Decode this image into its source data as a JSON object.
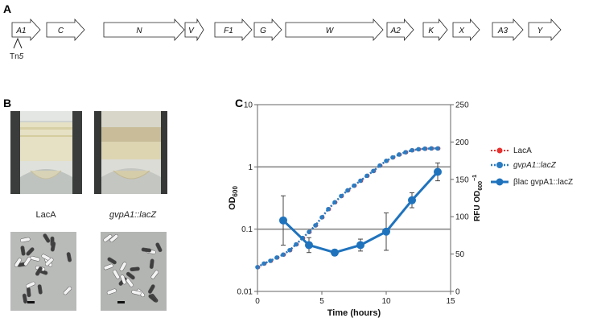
{
  "panels": {
    "A": "A",
    "B": "B",
    "C": "C"
  },
  "operon": {
    "genes": [
      "A1",
      "C",
      "N",
      "V",
      "F1",
      "G",
      "W",
      "A2",
      "K",
      "X",
      "A3",
      "Y"
    ],
    "insertion_label": "Tn5"
  },
  "photos": {
    "left_label": "LacA",
    "right_label": "gvpA1::lacZ"
  },
  "chart_data": {
    "type": "line",
    "xlabel": "Time (hours)",
    "ylabel": "OD600",
    "ylabel_base": "OD",
    "ylabel_sub": "600",
    "y2label": "RFU OD600−1",
    "y2label_base": "RFU OD",
    "y2label_sub": "600",
    "y2label_sup": "−1",
    "xlim": [
      0,
      15
    ],
    "ylim": [
      0.01,
      10
    ],
    "yscale": "log",
    "y2lim": [
      0,
      250
    ],
    "x_ticks": [
      "0",
      "5",
      "10",
      "15"
    ],
    "y_ticks": [
      "0.01",
      "0.1",
      "1",
      "10"
    ],
    "y2_ticks": [
      "0",
      "50",
      "100",
      "150",
      "200",
      "250"
    ],
    "grid": "horizontal at 0.1 and 1",
    "legend_position": "right",
    "colors": {
      "laca": "#e8312f",
      "gvp": "#2a7cc2",
      "blac": "#1f73bd"
    },
    "series": [
      {
        "name": "LacA",
        "axis": "left",
        "x": [
          0,
          0.5,
          1,
          1.5,
          2,
          2.5,
          3,
          3.5,
          4,
          4.5,
          5,
          5.5,
          6,
          6.5,
          7,
          7.5,
          8,
          8.5,
          9,
          9.5,
          10,
          10.5,
          11,
          11.5,
          12,
          12.5,
          13,
          13.5,
          14
        ],
        "y": [
          0.0245,
          0.028,
          0.031,
          0.035,
          0.039,
          0.046,
          0.057,
          0.072,
          0.09,
          0.115,
          0.155,
          0.21,
          0.27,
          0.34,
          0.42,
          0.5,
          0.6,
          0.72,
          0.86,
          1.05,
          1.25,
          1.42,
          1.58,
          1.72,
          1.85,
          1.92,
          1.96,
          1.98,
          1.98
        ]
      },
      {
        "name": "gvpA1::lacZ",
        "axis": "left",
        "x": [
          0,
          0.5,
          1,
          1.5,
          2,
          2.5,
          3,
          3.5,
          4,
          4.5,
          5,
          5.5,
          6,
          6.5,
          7,
          7.5,
          8,
          8.5,
          9,
          9.5,
          10,
          10.5,
          11,
          11.5,
          12,
          12.5,
          13,
          13.5,
          14
        ],
        "y": [
          0.0245,
          0.028,
          0.031,
          0.035,
          0.039,
          0.046,
          0.057,
          0.072,
          0.09,
          0.115,
          0.155,
          0.21,
          0.27,
          0.34,
          0.42,
          0.5,
          0.6,
          0.72,
          0.86,
          1.05,
          1.25,
          1.42,
          1.58,
          1.72,
          1.85,
          1.92,
          1.96,
          1.98,
          1.98
        ]
      },
      {
        "name": "βlac gvpA1::lacZ",
        "axis": "right",
        "x": [
          2,
          4,
          6,
          8,
          10,
          12,
          14
        ],
        "y": [
          95,
          62,
          52,
          62,
          80,
          122,
          160
        ],
        "err": [
          33,
          10,
          4,
          8,
          25,
          10,
          12
        ]
      }
    ]
  }
}
